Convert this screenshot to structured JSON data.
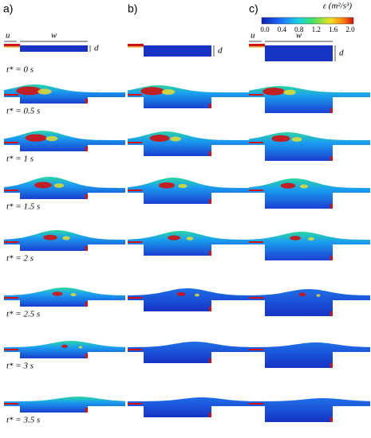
{
  "panels": [
    {
      "label": "a)"
    },
    {
      "label": "b)"
    },
    {
      "label": "c)"
    }
  ],
  "sketch": {
    "u": "u",
    "w": "w",
    "d": "d"
  },
  "colorbar": {
    "title": "ε (m²/s³)",
    "ticks": [
      "0.0",
      "0.4",
      "0.8",
      "1.2",
      "1.6",
      "2.0"
    ]
  },
  "time_labels": [
    "t* = 0 s",
    "t* = 0.5 s",
    "t* = 1 s",
    "t* = 1.5 s",
    "t* = 2 s",
    "t* = 2.5 s",
    "t* = 3 s",
    "t* = 3.5 s"
  ]
}
